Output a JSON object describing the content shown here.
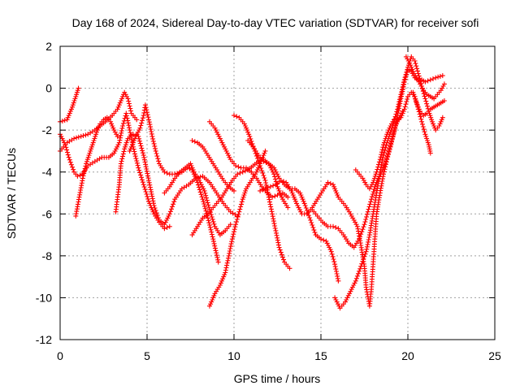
{
  "chart_data": {
    "type": "scatter",
    "title": "Day 168 of 2024, Sidereal Day-to-day VTEC variation (SDTVAR) for receiver sofi",
    "xlabel": "GPS time / hours",
    "ylabel": "SDTVAR / TECUs",
    "xlim": [
      0,
      25
    ],
    "ylim": [
      -12,
      2
    ],
    "xticks": [
      0,
      5,
      10,
      15,
      20,
      25
    ],
    "yticks": [
      -12,
      -10,
      -8,
      -6,
      -4,
      -2,
      0,
      2
    ],
    "grid": true,
    "marker": "+",
    "color": "#ff0000",
    "tracks": [
      [
        [
          0.0,
          -1.6
        ],
        [
          0.4,
          -1.5
        ],
        [
          0.7,
          -0.9
        ],
        [
          0.9,
          -0.4
        ],
        [
          1.05,
          0.0
        ]
      ],
      [
        [
          0.0,
          -3.0
        ],
        [
          0.4,
          -2.6
        ],
        [
          0.8,
          -2.4
        ],
        [
          1.2,
          -2.3
        ],
        [
          1.6,
          -2.2
        ],
        [
          2.0,
          -2.0
        ],
        [
          2.3,
          -1.8
        ],
        [
          2.6,
          -1.6
        ],
        [
          3.0,
          -1.3
        ],
        [
          3.3,
          -1.0
        ],
        [
          3.5,
          -0.6
        ],
        [
          3.7,
          -0.2
        ],
        [
          3.9,
          -0.5
        ],
        [
          4.1,
          -1.2
        ],
        [
          4.4,
          -1.5
        ]
      ],
      [
        [
          0.0,
          -2.2
        ],
        [
          0.3,
          -2.7
        ],
        [
          0.5,
          -3.3
        ],
        [
          0.8,
          -4.0
        ],
        [
          1.0,
          -4.2
        ],
        [
          1.3,
          -4.1
        ],
        [
          1.6,
          -3.7
        ],
        [
          2.0,
          -3.5
        ],
        [
          2.4,
          -3.3
        ],
        [
          2.8,
          -3.3
        ],
        [
          3.1,
          -3.1
        ],
        [
          3.4,
          -2.6
        ],
        [
          3.6,
          -1.8
        ],
        [
          3.8,
          -1.2
        ],
        [
          4.0,
          -2.0
        ],
        [
          4.2,
          -2.8
        ],
        [
          4.5,
          -3.8
        ],
        [
          4.8,
          -4.6
        ],
        [
          5.1,
          -5.4
        ],
        [
          5.4,
          -6.0
        ],
        [
          5.7,
          -6.4
        ],
        [
          6.0,
          -6.7
        ],
        [
          6.3,
          -6.6
        ]
      ],
      [
        [
          0.9,
          -6.1
        ],
        [
          1.1,
          -5.2
        ],
        [
          1.3,
          -4.3
        ],
        [
          1.5,
          -3.6
        ],
        [
          1.7,
          -3.1
        ],
        [
          1.9,
          -2.6
        ],
        [
          2.1,
          -2.1
        ],
        [
          2.3,
          -1.7
        ],
        [
          2.5,
          -1.5
        ],
        [
          2.7,
          -1.4
        ],
        [
          2.9,
          -1.6
        ],
        [
          3.1,
          -2.0
        ],
        [
          3.3,
          -2.3
        ]
      ],
      [
        [
          3.2,
          -5.9
        ],
        [
          3.4,
          -4.6
        ],
        [
          3.5,
          -3.6
        ],
        [
          3.7,
          -2.9
        ],
        [
          3.9,
          -2.4
        ],
        [
          4.2,
          -2.2
        ],
        [
          4.5,
          -2.3
        ],
        [
          4.8,
          -3.2
        ],
        [
          5.1,
          -4.4
        ],
        [
          5.4,
          -5.6
        ],
        [
          5.7,
          -6.3
        ],
        [
          6.0,
          -6.5
        ],
        [
          6.3,
          -6.0
        ],
        [
          6.6,
          -5.3
        ],
        [
          7.0,
          -4.8
        ],
        [
          7.4,
          -4.6
        ],
        [
          7.8,
          -4.3
        ],
        [
          8.2,
          -4.2
        ],
        [
          8.6,
          -4.5
        ],
        [
          9.0,
          -5.0
        ],
        [
          9.4,
          -5.5
        ],
        [
          9.8,
          -5.9
        ],
        [
          10.2,
          -6.1
        ]
      ],
      [
        [
          4.0,
          -3.0
        ],
        [
          4.3,
          -2.4
        ],
        [
          4.6,
          -1.9
        ],
        [
          4.8,
          -1.3
        ],
        [
          4.9,
          -0.8
        ],
        [
          5.1,
          -1.5
        ],
        [
          5.3,
          -2.3
        ],
        [
          5.5,
          -3.0
        ],
        [
          5.7,
          -3.6
        ],
        [
          6.0,
          -4.0
        ],
        [
          6.3,
          -4.1
        ],
        [
          6.6,
          -4.1
        ],
        [
          7.0,
          -4.0
        ],
        [
          7.3,
          -3.8
        ],
        [
          7.6,
          -3.9
        ],
        [
          7.9,
          -4.5
        ],
        [
          8.2,
          -5.3
        ],
        [
          8.5,
          -6.2
        ],
        [
          8.8,
          -7.2
        ],
        [
          9.1,
          -8.3
        ]
      ],
      [
        [
          7.6,
          -7.0
        ],
        [
          7.9,
          -6.6
        ],
        [
          8.2,
          -6.2
        ],
        [
          8.5,
          -6.0
        ],
        [
          8.7,
          -5.8
        ],
        [
          9.0,
          -5.5
        ],
        [
          9.3,
          -5.2
        ],
        [
          9.6,
          -4.8
        ],
        [
          9.9,
          -4.4
        ],
        [
          10.2,
          -4.1
        ],
        [
          10.5,
          -4.0
        ],
        [
          10.8,
          -3.9
        ],
        [
          11.1,
          -3.7
        ],
        [
          11.4,
          -3.5
        ],
        [
          11.7,
          -3.4
        ],
        [
          12.0,
          -3.6
        ],
        [
          12.3,
          -4.1
        ],
        [
          12.5,
          -4.7
        ],
        [
          12.8,
          -5.3
        ],
        [
          13.1,
          -5.7
        ]
      ],
      [
        [
          6.0,
          -5.0
        ],
        [
          6.3,
          -4.7
        ],
        [
          6.6,
          -4.3
        ],
        [
          6.9,
          -4.0
        ],
        [
          7.2,
          -3.8
        ],
        [
          7.5,
          -3.6
        ],
        [
          7.7,
          -4.0
        ],
        [
          8.0,
          -4.4
        ],
        [
          8.3,
          -4.9
        ],
        [
          8.6,
          -5.8
        ],
        [
          8.9,
          -6.6
        ],
        [
          9.2,
          -7.0
        ],
        [
          9.5,
          -6.8
        ],
        [
          9.8,
          -6.5
        ]
      ],
      [
        [
          7.6,
          -2.5
        ],
        [
          7.9,
          -2.6
        ],
        [
          8.2,
          -2.8
        ],
        [
          8.5,
          -3.2
        ],
        [
          8.8,
          -3.6
        ],
        [
          9.1,
          -4.0
        ],
        [
          9.4,
          -4.4
        ],
        [
          9.7,
          -4.7
        ],
        [
          10.0,
          -4.9
        ]
      ],
      [
        [
          8.6,
          -1.6
        ],
        [
          8.9,
          -1.9
        ],
        [
          9.2,
          -2.4
        ],
        [
          9.5,
          -2.9
        ],
        [
          9.8,
          -3.4
        ],
        [
          10.1,
          -3.7
        ],
        [
          10.4,
          -3.8
        ],
        [
          10.7,
          -3.8
        ],
        [
          11.0,
          -4.0
        ],
        [
          11.3,
          -4.3
        ],
        [
          11.6,
          -4.7
        ],
        [
          11.9,
          -5.0
        ],
        [
          12.2,
          -5.2
        ],
        [
          12.5,
          -5.1
        ],
        [
          12.8,
          -5.0
        ],
        [
          13.1,
          -5.2
        ]
      ],
      [
        [
          10.0,
          -1.3
        ],
        [
          10.3,
          -1.4
        ],
        [
          10.6,
          -1.7
        ],
        [
          10.9,
          -2.3
        ],
        [
          11.2,
          -3.0
        ],
        [
          11.5,
          -3.7
        ],
        [
          11.8,
          -4.4
        ],
        [
          12.0,
          -5.2
        ],
        [
          12.2,
          -6.0
        ],
        [
          12.4,
          -6.8
        ],
        [
          12.6,
          -7.6
        ],
        [
          12.9,
          -8.3
        ],
        [
          13.2,
          -8.6
        ]
      ],
      [
        [
          8.6,
          -10.4
        ],
        [
          8.9,
          -9.8
        ],
        [
          9.2,
          -9.4
        ],
        [
          9.5,
          -8.8
        ],
        [
          9.7,
          -8.0
        ],
        [
          9.9,
          -7.2
        ],
        [
          10.1,
          -6.5
        ],
        [
          10.3,
          -5.9
        ],
        [
          10.5,
          -5.3
        ],
        [
          10.7,
          -4.8
        ],
        [
          11.0,
          -4.4
        ],
        [
          11.3,
          -4.0
        ],
        [
          11.6,
          -3.4
        ],
        [
          11.8,
          -3.0
        ]
      ],
      [
        [
          10.8,
          -2.5
        ],
        [
          11.1,
          -2.8
        ],
        [
          11.4,
          -3.2
        ],
        [
          11.7,
          -3.5
        ],
        [
          12.0,
          -3.6
        ],
        [
          12.3,
          -3.8
        ],
        [
          12.6,
          -4.3
        ],
        [
          12.9,
          -4.6
        ],
        [
          13.2,
          -4.8
        ],
        [
          13.5,
          -4.8
        ],
        [
          13.8,
          -5.0
        ],
        [
          14.1,
          -5.6
        ],
        [
          14.4,
          -6.3
        ],
        [
          14.7,
          -7.0
        ],
        [
          15.0,
          -7.2
        ],
        [
          15.3,
          -7.3
        ],
        [
          15.6,
          -7.8
        ],
        [
          15.8,
          -8.4
        ],
        [
          16.0,
          -9.2
        ]
      ],
      [
        [
          11.5,
          -4.9
        ],
        [
          11.8,
          -4.8
        ],
        [
          12.1,
          -4.7
        ],
        [
          12.4,
          -4.6
        ],
        [
          12.7,
          -4.4
        ],
        [
          13.0,
          -4.5
        ],
        [
          13.3,
          -4.9
        ],
        [
          13.6,
          -5.5
        ],
        [
          13.9,
          -6.0
        ],
        [
          14.2,
          -6.0
        ],
        [
          14.5,
          -5.7
        ],
        [
          14.8,
          -5.3
        ],
        [
          15.1,
          -4.9
        ],
        [
          15.4,
          -4.5
        ],
        [
          15.7,
          -4.6
        ],
        [
          16.0,
          -5.2
        ]
      ],
      [
        [
          14.5,
          -5.8
        ],
        [
          14.8,
          -6.1
        ],
        [
          15.1,
          -6.4
        ],
        [
          15.4,
          -6.6
        ],
        [
          15.7,
          -6.6
        ],
        [
          16.0,
          -6.7
        ],
        [
          16.3,
          -7.0
        ],
        [
          16.6,
          -7.4
        ],
        [
          16.9,
          -7.6
        ],
        [
          17.2,
          -7.2
        ],
        [
          17.5,
          -6.5
        ],
        [
          17.7,
          -5.9
        ],
        [
          17.9,
          -5.3
        ],
        [
          18.1,
          -4.7
        ],
        [
          18.3,
          -4.3
        ],
        [
          18.5,
          -4.0
        ],
        [
          18.7,
          -3.6
        ],
        [
          18.9,
          -3.0
        ],
        [
          19.1,
          -2.4
        ],
        [
          19.3,
          -1.8
        ],
        [
          19.5,
          -1.4
        ],
        [
          19.7,
          -1.1
        ]
      ],
      [
        [
          15.8,
          -10.0
        ],
        [
          16.1,
          -10.5
        ],
        [
          16.4,
          -10.2
        ],
        [
          16.7,
          -9.7
        ],
        [
          17.0,
          -9.2
        ],
        [
          17.3,
          -8.5
        ],
        [
          17.6,
          -7.8
        ],
        [
          17.8,
          -7.0
        ],
        [
          18.0,
          -6.0
        ],
        [
          18.2,
          -5.0
        ],
        [
          18.4,
          -4.0
        ],
        [
          18.6,
          -3.2
        ],
        [
          18.8,
          -2.6
        ],
        [
          19.0,
          -2.1
        ],
        [
          19.2,
          -1.6
        ],
        [
          19.4,
          -1.0
        ],
        [
          19.6,
          -0.3
        ],
        [
          19.8,
          0.4
        ],
        [
          20.0,
          1.0
        ],
        [
          20.2,
          1.5
        ],
        [
          20.4,
          1.3
        ],
        [
          20.6,
          0.7
        ],
        [
          20.8,
          0.1
        ],
        [
          21.0,
          -0.5
        ],
        [
          21.2,
          -1.1
        ],
        [
          21.4,
          -1.6
        ],
        [
          21.6,
          -2.0
        ],
        [
          21.8,
          -1.8
        ],
        [
          22.0,
          -1.4
        ]
      ],
      [
        [
          16.1,
          -5.3
        ],
        [
          16.4,
          -5.6
        ],
        [
          16.7,
          -6.0
        ],
        [
          16.9,
          -6.3
        ],
        [
          17.1,
          -6.6
        ],
        [
          17.3,
          -7.5
        ],
        [
          17.5,
          -8.5
        ],
        [
          17.6,
          -9.5
        ],
        [
          17.8,
          -10.4
        ],
        [
          17.9,
          -9.6
        ],
        [
          18.0,
          -8.4
        ],
        [
          18.1,
          -7.2
        ],
        [
          18.2,
          -6.0
        ],
        [
          18.4,
          -5.0
        ],
        [
          18.6,
          -4.1
        ],
        [
          18.8,
          -3.4
        ],
        [
          19.0,
          -2.8
        ],
        [
          19.2,
          -2.1
        ],
        [
          19.4,
          -1.3
        ],
        [
          19.6,
          -0.5
        ],
        [
          19.8,
          0.3
        ],
        [
          20.0,
          0.9
        ],
        [
          20.2,
          0.8
        ],
        [
          20.4,
          0.5
        ],
        [
          20.6,
          0.4
        ],
        [
          20.8,
          0.4
        ],
        [
          21.0,
          0.3
        ],
        [
          21.3,
          0.4
        ],
        [
          21.6,
          0.5
        ],
        [
          22.0,
          0.6
        ]
      ],
      [
        [
          17.0,
          -3.9
        ],
        [
          17.2,
          -4.1
        ],
        [
          17.4,
          -4.3
        ],
        [
          17.6,
          -4.6
        ],
        [
          17.8,
          -4.8
        ],
        [
          18.0,
          -4.5
        ],
        [
          18.2,
          -4.0
        ],
        [
          18.4,
          -3.4
        ],
        [
          18.6,
          -2.7
        ],
        [
          18.8,
          -2.2
        ],
        [
          19.0,
          -1.8
        ],
        [
          19.2,
          -1.5
        ],
        [
          19.4,
          -1.5
        ],
        [
          19.6,
          -1.4
        ],
        [
          19.8,
          -1.0
        ],
        [
          20.0,
          -0.4
        ],
        [
          20.2,
          -0.2
        ],
        [
          20.4,
          -0.4
        ],
        [
          20.6,
          -1.0
        ],
        [
          20.8,
          -1.6
        ],
        [
          21.0,
          -2.2
        ],
        [
          21.2,
          -2.7
        ],
        [
          21.3,
          -3.1
        ]
      ],
      [
        [
          19.9,
          1.5
        ],
        [
          20.1,
          1.2
        ],
        [
          20.3,
          0.8
        ],
        [
          20.5,
          0.5
        ],
        [
          20.7,
          0.2
        ],
        [
          20.9,
          -0.1
        ],
        [
          21.1,
          -0.3
        ],
        [
          21.3,
          -0.4
        ],
        [
          21.5,
          -0.5
        ],
        [
          21.7,
          -0.3
        ],
        [
          21.9,
          -0.1
        ],
        [
          22.1,
          0.2
        ]
      ],
      [
        [
          20.3,
          -0.2
        ],
        [
          20.5,
          -0.7
        ],
        [
          20.7,
          -1.1
        ],
        [
          20.9,
          -1.3
        ],
        [
          21.1,
          -1.2
        ],
        [
          21.3,
          -1.0
        ],
        [
          21.5,
          -0.9
        ],
        [
          21.7,
          -0.8
        ],
        [
          21.9,
          -0.7
        ],
        [
          22.1,
          -0.6
        ]
      ]
    ]
  }
}
